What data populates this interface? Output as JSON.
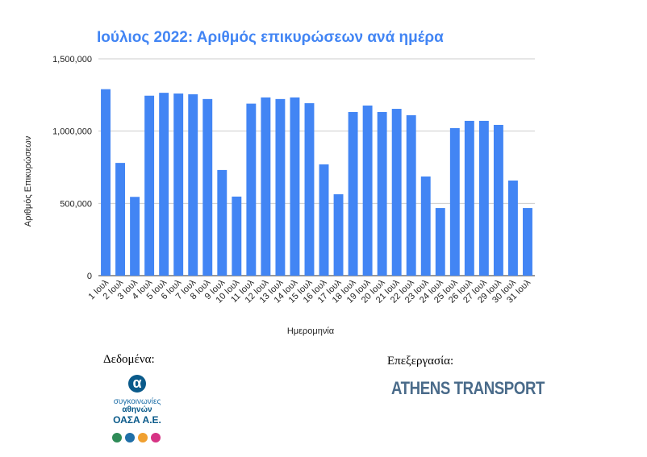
{
  "chart_data": {
    "type": "bar",
    "title": "Ιούλιος 2022: Αριθμός επικυρώσεων ανά ημέρα",
    "x_label": "Ημερομηνία",
    "y_label": "Αριθμός Επικυρώσεων",
    "categories": [
      "1 Ιουλ",
      "2 Ιουλ",
      "3 Ιουλ",
      "4 Ιουλ",
      "5 Ιουλ",
      "6 Ιουλ",
      "7 Ιουλ",
      "8 Ιουλ",
      "9 Ιουλ",
      "10 Ιουλ",
      "11 Ιουλ",
      "12 Ιουλ",
      "13 Ιουλ",
      "14 Ιουλ",
      "15 Ιουλ",
      "16 Ιουλ",
      "17 Ιουλ",
      "18 Ιουλ",
      "19 Ιουλ",
      "20 Ιουλ",
      "21 Ιουλ",
      "22 Ιουλ",
      "23 Ιουλ",
      "24 Ιουλ",
      "25 Ιουλ",
      "26 Ιουλ",
      "27 Ιουλ",
      "29 Ιουλ",
      "30 Ιουλ",
      "31 Ιουλ"
    ],
    "values": [
      1290000,
      780000,
      545000,
      1245000,
      1265000,
      1260000,
      1255000,
      1222000,
      731000,
      547000,
      1190000,
      1233000,
      1222000,
      1233000,
      1193000,
      770000,
      563000,
      1132000,
      1177000,
      1132000,
      1154000,
      1110000,
      686000,
      468000,
      1021000,
      1071000,
      1071000,
      1043000,
      658000,
      468000
    ],
    "color": "#4285f4",
    "ylim": [
      0,
      1500000
    ],
    "yticks": [
      0,
      {
        "value": 500000,
        "label": "500,000"
      },
      {
        "value": 1000000,
        "label": "1,000,000"
      },
      {
        "value": 1500000,
        "label": "1,500,000"
      }
    ],
    "grid": true
  },
  "footer": {
    "data_label": "Δεδομένα:",
    "oasa_line1": "συγκοινωνίες",
    "oasa_line2": "αθηνών",
    "oasa_line3": "ΟΑΣΑ Α.Ε.",
    "processing_label": "Επεξεργασία:",
    "brand": "ATHENS TRANSPORT"
  }
}
